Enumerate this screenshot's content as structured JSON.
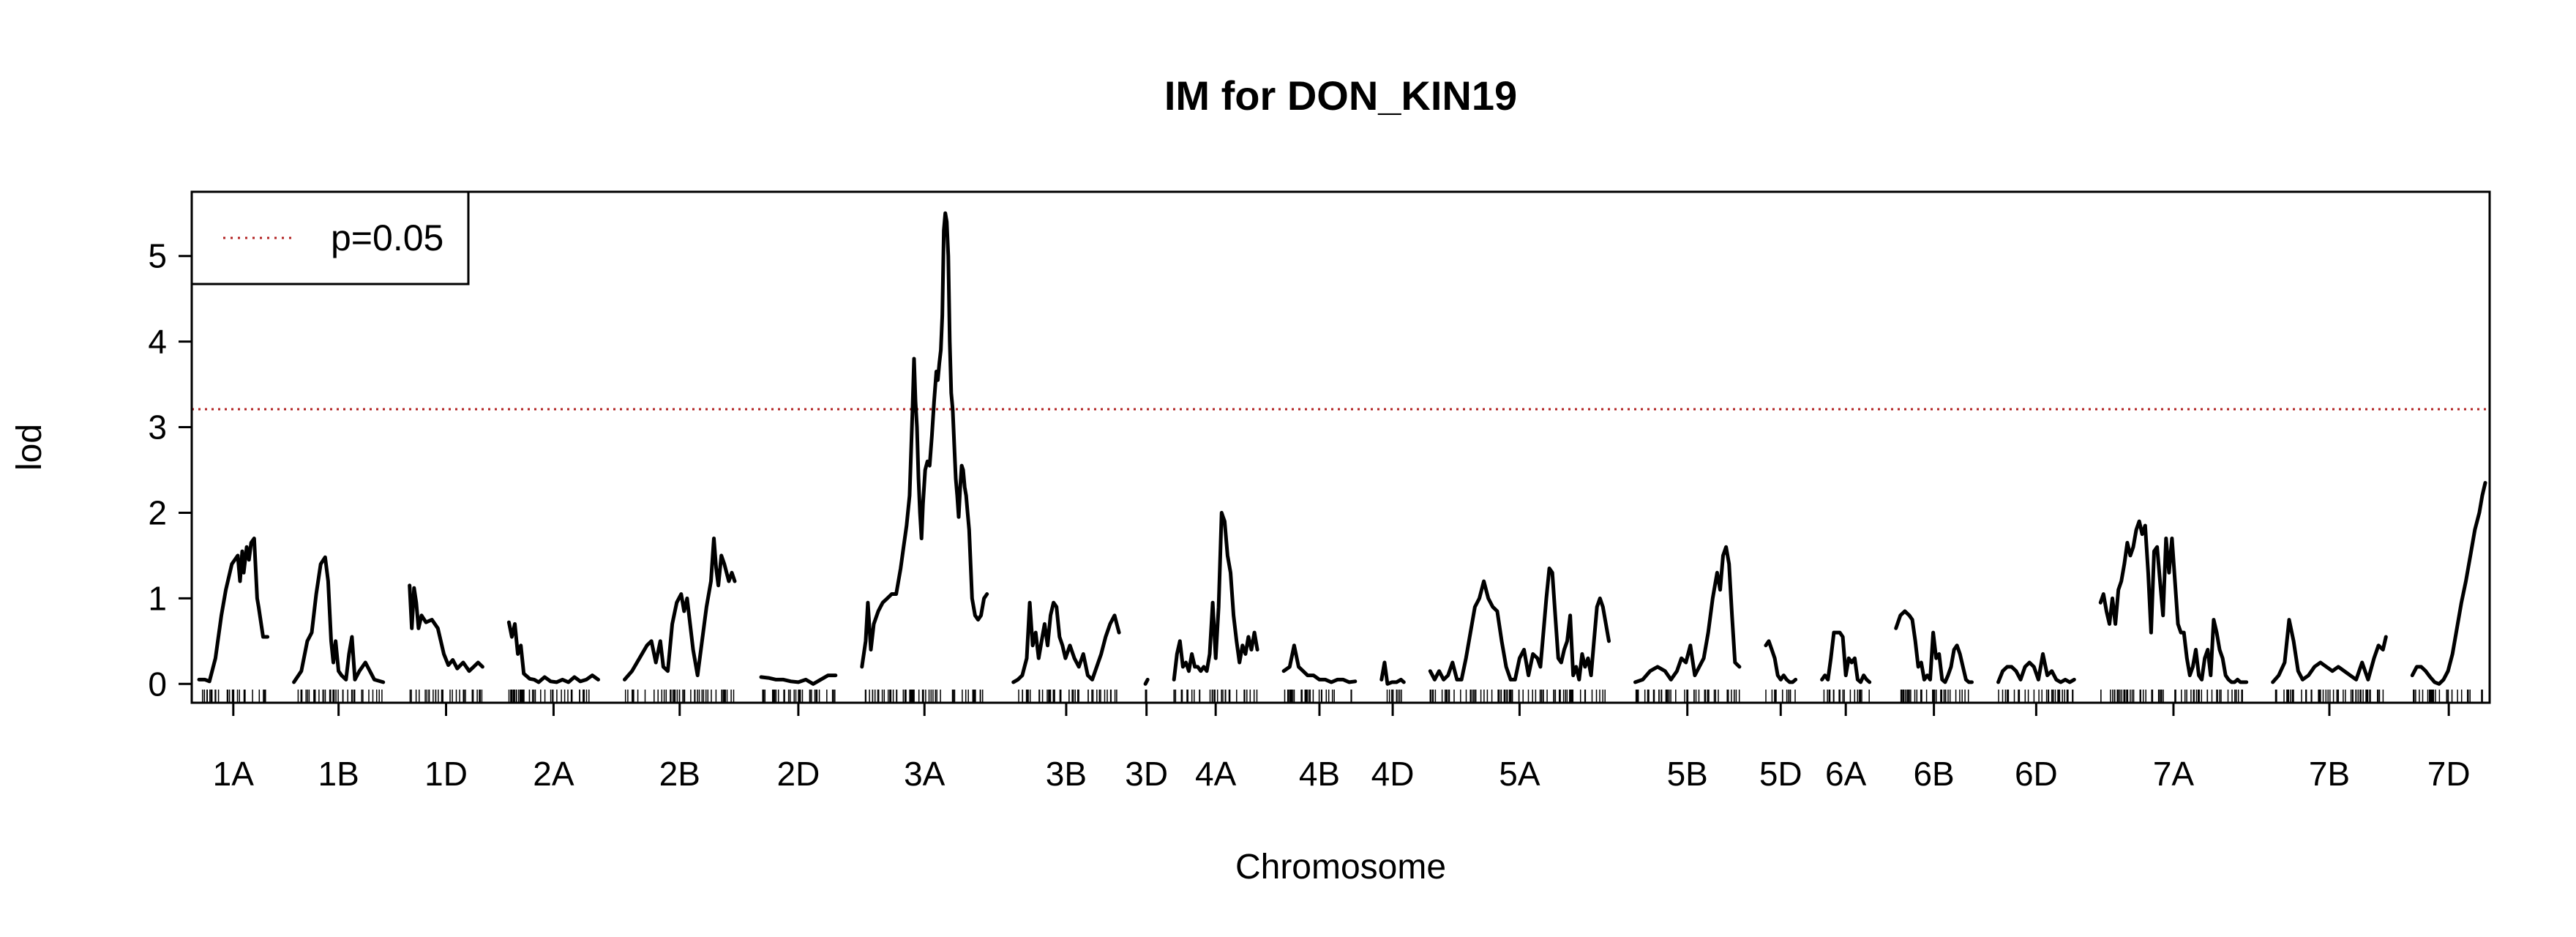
{
  "chart_data": {
    "type": "line",
    "title": "IM for DON_KIN19",
    "xlabel": "Chromosome",
    "ylabel": "lod",
    "ylim": [
      -0.22,
      5.75
    ],
    "yticks": [
      0,
      1,
      2,
      3,
      4,
      5
    ],
    "grid": false,
    "legend": {
      "placement": "top-left",
      "entries": [
        {
          "label": "p=0.05",
          "color": "#b22222",
          "style": "dotted"
        }
      ]
    },
    "threshold": {
      "label": "p=0.05",
      "value": 3.21
    },
    "line_color": "#000000",
    "series": [
      {
        "name": "1A",
        "x": [
          0,
          8,
          14,
          22,
          30,
          36,
          44,
          52,
          55,
          58,
          60,
          64,
          67,
          70,
          74,
          78,
          80,
          86,
          92
        ],
        "y": [
          0.05,
          0.05,
          0.03,
          0.3,
          0.8,
          1.1,
          1.4,
          1.5,
          1.2,
          1.55,
          1.3,
          1.6,
          1.45,
          1.65,
          1.7,
          1.0,
          0.9,
          0.55,
          0.55
        ]
      },
      {
        "name": "1B",
        "x": [
          0,
          10,
          18,
          24,
          30,
          36,
          42,
          46,
          50,
          53,
          56,
          60,
          64,
          70,
          74,
          78,
          82,
          88,
          96,
          108,
          120
        ],
        "y": [
          0.02,
          0.15,
          0.5,
          0.6,
          1.05,
          1.4,
          1.48,
          1.2,
          0.5,
          0.25,
          0.5,
          0.15,
          0.1,
          0.05,
          0.35,
          0.55,
          0.05,
          0.15,
          0.25,
          0.05,
          0.02
        ]
      },
      {
        "name": "1D",
        "x": [
          0,
          3,
          6,
          9,
          12,
          16,
          22,
          30,
          38,
          46,
          52,
          58,
          64,
          72,
          80,
          86,
          92,
          98
        ],
        "y": [
          1.15,
          0.65,
          1.12,
          0.95,
          0.65,
          0.8,
          0.72,
          0.75,
          0.65,
          0.35,
          0.22,
          0.28,
          0.18,
          0.25,
          0.15,
          0.2,
          0.25,
          0.2
        ]
      },
      {
        "name": "2A",
        "x": [
          0,
          4,
          8,
          12,
          16,
          20,
          28,
          34,
          40,
          48,
          56,
          64,
          72,
          80,
          88,
          96,
          104,
          112,
          120
        ],
        "y": [
          0.72,
          0.55,
          0.7,
          0.35,
          0.45,
          0.12,
          0.06,
          0.05,
          0.02,
          0.08,
          0.03,
          0.02,
          0.05,
          0.02,
          0.08,
          0.03,
          0.05,
          0.1,
          0.05
        ]
      },
      {
        "name": "2B",
        "x": [
          0,
          10,
          20,
          30,
          36,
          42,
          48,
          52,
          58,
          64,
          70,
          76,
          80,
          84,
          88,
          92,
          98,
          104,
          110,
          116,
          120,
          123,
          126,
          130,
          134,
          140,
          144,
          148
        ],
        "y": [
          0.05,
          0.15,
          0.3,
          0.45,
          0.5,
          0.25,
          0.5,
          0.2,
          0.15,
          0.7,
          0.95,
          1.05,
          0.85,
          1.0,
          0.7,
          0.4,
          0.1,
          0.5,
          0.9,
          1.2,
          1.7,
          1.35,
          1.15,
          1.5,
          1.4,
          1.2,
          1.3,
          1.2
        ]
      },
      {
        "name": "2D",
        "x": [
          0,
          10,
          20,
          30,
          40,
          50,
          60,
          70,
          80,
          90,
          100
        ],
        "y": [
          0.08,
          0.07,
          0.05,
          0.05,
          0.03,
          0.02,
          0.05,
          0.0,
          0.05,
          0.1,
          0.1
        ]
      },
      {
        "name": "3A",
        "x": [
          0,
          5,
          8,
          12,
          16,
          22,
          28,
          34,
          40,
          46,
          52,
          56,
          60,
          64,
          66,
          68,
          70,
          72,
          74,
          76,
          78,
          80,
          82,
          85,
          88,
          91,
          94,
          97,
          100,
          102,
          104,
          106,
          108,
          110,
          112,
          114,
          116,
          118,
          120,
          122,
          124,
          126,
          128,
          130,
          132,
          134,
          136,
          138,
          140,
          142,
          144,
          148,
          152,
          156,
          160,
          164,
          168
        ],
        "y": [
          0.2,
          0.5,
          0.95,
          0.4,
          0.7,
          0.85,
          0.95,
          1.0,
          1.05,
          1.05,
          1.35,
          1.6,
          1.85,
          2.2,
          2.7,
          3.2,
          3.8,
          3.3,
          3.0,
          2.4,
          2.0,
          1.7,
          2.1,
          2.5,
          2.6,
          2.55,
          2.9,
          3.3,
          3.65,
          3.55,
          3.75,
          3.9,
          4.3,
          5.3,
          5.5,
          5.4,
          5.0,
          4.0,
          3.4,
          3.2,
          2.8,
          2.4,
          2.2,
          1.95,
          2.3,
          2.55,
          2.5,
          2.3,
          2.2,
          2.0,
          1.8,
          1.0,
          0.8,
          0.75,
          0.8,
          1.0,
          1.05
        ]
      },
      {
        "name": "3B",
        "x": [
          0,
          6,
          12,
          18,
          22,
          26,
          30,
          34,
          38,
          42,
          46,
          50,
          54,
          58,
          62,
          66,
          70,
          76,
          82,
          88,
          94,
          100,
          106,
          112,
          118,
          124,
          130,
          136,
          142
        ],
        "y": [
          0.02,
          0.05,
          0.1,
          0.3,
          0.95,
          0.45,
          0.6,
          0.3,
          0.5,
          0.7,
          0.45,
          0.8,
          0.95,
          0.9,
          0.55,
          0.45,
          0.3,
          0.45,
          0.3,
          0.2,
          0.35,
          0.1,
          0.05,
          0.2,
          0.35,
          0.55,
          0.7,
          0.8,
          0.6
        ]
      },
      {
        "name": "3D",
        "x": [
          0,
          3
        ],
        "y": [
          0.0,
          0.05
        ]
      },
      {
        "name": "4A",
        "x": [
          0,
          4,
          8,
          12,
          16,
          20,
          24,
          28,
          32,
          36,
          40,
          44,
          48,
          52,
          56,
          60,
          64,
          66,
          68,
          72,
          76,
          80,
          84,
          88,
          92,
          96,
          100,
          104,
          108,
          112
        ],
        "y": [
          0.05,
          0.35,
          0.5,
          0.2,
          0.25,
          0.15,
          0.35,
          0.2,
          0.2,
          0.15,
          0.2,
          0.15,
          0.35,
          0.95,
          0.3,
          0.9,
          2.0,
          1.95,
          1.9,
          1.5,
          1.3,
          0.8,
          0.5,
          0.25,
          0.45,
          0.35,
          0.55,
          0.4,
          0.6,
          0.4
        ]
      },
      {
        "name": "4B",
        "x": [
          0,
          8,
          14,
          20,
          26,
          32,
          40,
          48,
          56,
          64,
          72,
          80,
          88,
          96
        ],
        "y": [
          0.15,
          0.2,
          0.45,
          0.2,
          0.15,
          0.1,
          0.1,
          0.05,
          0.05,
          0.02,
          0.05,
          0.05,
          0.02,
          0.03
        ]
      },
      {
        "name": "4D",
        "x": [
          0,
          4,
          8,
          14,
          20,
          26,
          30
        ],
        "y": [
          0.05,
          0.25,
          0.0,
          0.02,
          0.02,
          0.05,
          0.02
        ]
      },
      {
        "name": "5A",
        "x": [
          0,
          6,
          12,
          18,
          24,
          30,
          36,
          42,
          48,
          54,
          60,
          66,
          72,
          78,
          84,
          90,
          96,
          102,
          108,
          114,
          120,
          126,
          132,
          138,
          144,
          148,
          152,
          156,
          160,
          164,
          168,
          172,
          176,
          180,
          184,
          188,
          192,
          196,
          200,
          204,
          208,
          212,
          216,
          220,
          224,
          228,
          232,
          236,
          240
        ],
        "y": [
          0.15,
          0.05,
          0.15,
          0.05,
          0.1,
          0.25,
          0.05,
          0.05,
          0.3,
          0.6,
          0.9,
          1.0,
          1.2,
          1.0,
          0.9,
          0.85,
          0.5,
          0.2,
          0.05,
          0.05,
          0.3,
          0.4,
          0.1,
          0.35,
          0.3,
          0.2,
          0.6,
          1.0,
          1.35,
          1.3,
          0.8,
          0.3,
          0.25,
          0.4,
          0.5,
          0.8,
          0.1,
          0.2,
          0.05,
          0.35,
          0.2,
          0.3,
          0.1,
          0.5,
          0.9,
          1.0,
          0.9,
          0.7,
          0.5
        ]
      },
      {
        "name": "5B",
        "x": [
          0,
          10,
          20,
          30,
          40,
          48,
          56,
          62,
          68,
          74,
          80,
          86,
          92,
          98,
          104,
          110,
          114,
          118,
          122,
          126,
          130,
          134,
          140
        ],
        "y": [
          0.02,
          0.05,
          0.15,
          0.2,
          0.15,
          0.05,
          0.15,
          0.3,
          0.25,
          0.45,
          0.1,
          0.2,
          0.3,
          0.6,
          1.0,
          1.3,
          1.1,
          1.5,
          1.6,
          1.4,
          0.8,
          0.25,
          0.2
        ]
      },
      {
        "name": "5D",
        "x": [
          0,
          4,
          8,
          12,
          16,
          20,
          24,
          28,
          32,
          36,
          40
        ],
        "y": [
          0.45,
          0.5,
          0.4,
          0.3,
          0.1,
          0.05,
          0.1,
          0.05,
          0.02,
          0.02,
          0.05
        ]
      },
      {
        "name": "6A",
        "x": [
          0,
          4,
          8,
          12,
          16,
          20,
          24,
          28,
          32,
          36,
          40,
          44,
          48,
          52,
          56,
          60,
          64
        ],
        "y": [
          0.05,
          0.1,
          0.05,
          0.3,
          0.6,
          0.6,
          0.6,
          0.55,
          0.1,
          0.3,
          0.25,
          0.3,
          0.05,
          0.02,
          0.1,
          0.05,
          0.02
        ]
      },
      {
        "name": "6B",
        "x": [
          0,
          6,
          12,
          18,
          22,
          26,
          30,
          34,
          38,
          42,
          46,
          50,
          54,
          58,
          62,
          66,
          70,
          74,
          78,
          82,
          86,
          90,
          94,
          98,
          102
        ],
        "y": [
          0.65,
          0.8,
          0.85,
          0.8,
          0.75,
          0.5,
          0.2,
          0.25,
          0.05,
          0.1,
          0.05,
          0.6,
          0.3,
          0.35,
          0.05,
          0.02,
          0.1,
          0.2,
          0.4,
          0.45,
          0.35,
          0.2,
          0.05,
          0.02,
          0.02
        ]
      },
      {
        "name": "6D",
        "x": [
          0,
          6,
          12,
          18,
          24,
          30,
          36,
          42,
          48,
          54,
          60,
          66,
          72,
          78,
          84,
          90,
          96,
          102
        ],
        "y": [
          0.02,
          0.15,
          0.2,
          0.2,
          0.15,
          0.05,
          0.2,
          0.25,
          0.2,
          0.05,
          0.35,
          0.1,
          0.15,
          0.05,
          0.02,
          0.05,
          0.02,
          0.05
        ]
      },
      {
        "name": "7A",
        "x": [
          0,
          4,
          8,
          12,
          16,
          20,
          24,
          28,
          32,
          36,
          40,
          44,
          48,
          52,
          56,
          60,
          64,
          68,
          72,
          76,
          80,
          84,
          88,
          92,
          96,
          100,
          104,
          108,
          112,
          116,
          120,
          124,
          128,
          132,
          136,
          140,
          144,
          148,
          152,
          156,
          160,
          164,
          168,
          172,
          176,
          180,
          184,
          188,
          192,
          196
        ],
        "y": [
          0.95,
          1.05,
          0.85,
          0.7,
          1.0,
          0.7,
          1.1,
          1.2,
          1.4,
          1.65,
          1.5,
          1.6,
          1.8,
          1.9,
          1.75,
          1.85,
          1.3,
          0.6,
          1.55,
          1.6,
          1.2,
          0.8,
          1.7,
          1.3,
          1.7,
          1.2,
          0.7,
          0.6,
          0.6,
          0.3,
          0.1,
          0.2,
          0.4,
          0.1,
          0.05,
          0.3,
          0.4,
          0.1,
          0.75,
          0.6,
          0.4,
          0.3,
          0.1,
          0.05,
          0.02,
          0.02,
          0.05,
          0.02,
          0.02,
          0.02
        ]
      },
      {
        "name": "7B",
        "x": [
          0,
          8,
          16,
          22,
          28,
          34,
          40,
          48,
          56,
          64,
          72,
          80,
          88,
          96,
          104,
          112,
          120,
          128,
          136,
          142,
          148,
          152
        ],
        "y": [
          0.02,
          0.1,
          0.25,
          0.75,
          0.5,
          0.15,
          0.05,
          0.1,
          0.2,
          0.25,
          0.2,
          0.15,
          0.2,
          0.15,
          0.1,
          0.05,
          0.25,
          0.05,
          0.3,
          0.45,
          0.4,
          0.55
        ]
      },
      {
        "name": "7D",
        "x": [
          0,
          6,
          12,
          18,
          24,
          30,
          36,
          42,
          48,
          54,
          60,
          66,
          72,
          78,
          84,
          90,
          94,
          98
        ],
        "y": [
          0.1,
          0.2,
          0.2,
          0.15,
          0.08,
          0.02,
          0.0,
          0.05,
          0.15,
          0.35,
          0.65,
          0.95,
          1.2,
          1.5,
          1.8,
          2.0,
          2.2,
          2.35
        ]
      }
    ],
    "chromosome_extents": {
      "names": [
        "1A",
        "1B",
        "1D",
        "2A",
        "2B",
        "2D",
        "3A",
        "3B",
        "3D",
        "4A",
        "4B",
        "4D",
        "5A",
        "5B",
        "5D",
        "6A",
        "6B",
        "6D",
        "7A",
        "7B",
        "7D"
      ],
      "lengths": [
        92,
        120,
        98,
        120,
        148,
        100,
        168,
        142,
        3,
        112,
        96,
        30,
        240,
        140,
        40,
        64,
        102,
        102,
        196,
        152,
        98
      ]
    }
  }
}
